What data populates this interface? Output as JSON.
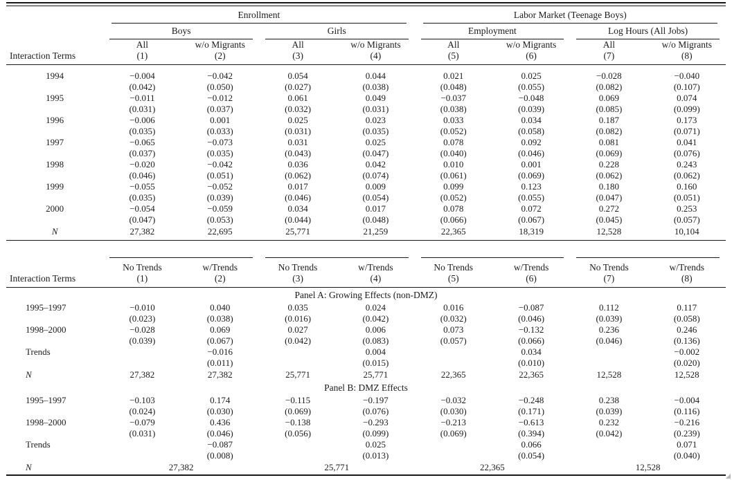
{
  "table1": {
    "stub_header": "Interaction Terms",
    "groups": [
      {
        "label": "Enrollment",
        "span": 4
      },
      {
        "label": "Labor Market (Teenage Boys)",
        "span": 4
      }
    ],
    "subgroups": [
      {
        "label": "Boys",
        "span": 2
      },
      {
        "label": "Girls",
        "span": 2
      },
      {
        "label": "Employment",
        "span": 2
      },
      {
        "label": "Log Hours (All Jobs)",
        "span": 2
      }
    ],
    "columns": [
      {
        "label": "All",
        "number": "(1)"
      },
      {
        "label": "w/o Migrants",
        "number": "(2)"
      },
      {
        "label": "All",
        "number": "(3)"
      },
      {
        "label": "w/o Migrants",
        "number": "(4)"
      },
      {
        "label": "All",
        "number": "(5)"
      },
      {
        "label": "w/o Migrants",
        "number": "(6)"
      },
      {
        "label": "All",
        "number": "(7)"
      },
      {
        "label": "w/o Migrants",
        "number": "(8)"
      }
    ],
    "rows": [
      {
        "label": "1994",
        "cells": [
          {
            "coef": "−0.004",
            "se": "(0.042)"
          },
          {
            "coef": "−0.042",
            "se": "(0.050)"
          },
          {
            "coef": "0.054",
            "se": "(0.027)"
          },
          {
            "coef": "0.044",
            "se": "(0.038)"
          },
          {
            "coef": "0.021",
            "se": "(0.048)"
          },
          {
            "coef": "0.025",
            "se": "(0.055)"
          },
          {
            "coef": "−0.028",
            "se": "(0.082)"
          },
          {
            "coef": "−0.040",
            "se": "(0.107)"
          }
        ]
      },
      {
        "label": "1995",
        "cells": [
          {
            "coef": "−0.011",
            "se": "(0.031)"
          },
          {
            "coef": "−0.012",
            "se": "(0.037)"
          },
          {
            "coef": "0.061",
            "se": "(0.032)"
          },
          {
            "coef": "0.049",
            "se": "(0.031)"
          },
          {
            "coef": "−0.037",
            "se": "(0.038)"
          },
          {
            "coef": "−0.048",
            "se": "(0.039)"
          },
          {
            "coef": "0.069",
            "se": "(0.085)"
          },
          {
            "coef": "0.074",
            "se": "(0.099)"
          }
        ]
      },
      {
        "label": "1996",
        "cells": [
          {
            "coef": "−0.006",
            "se": "(0.035)"
          },
          {
            "coef": "0.001",
            "se": "(0.033)"
          },
          {
            "coef": "0.025",
            "se": "(0.031)"
          },
          {
            "coef": "0.023",
            "se": "(0.035)"
          },
          {
            "coef": "0.033",
            "se": "(0.052)"
          },
          {
            "coef": "0.034",
            "se": "(0.058)"
          },
          {
            "coef": "0.187",
            "se": "(0.082)"
          },
          {
            "coef": "0.173",
            "se": "(0.071)"
          }
        ]
      },
      {
        "label": "1997",
        "cells": [
          {
            "coef": "−0.065",
            "se": "(0.037)"
          },
          {
            "coef": "−0.073",
            "se": "(0.035)"
          },
          {
            "coef": "0.031",
            "se": "(0.043)"
          },
          {
            "coef": "0.025",
            "se": "(0.047)"
          },
          {
            "coef": "0.078",
            "se": "(0.040)"
          },
          {
            "coef": "0.092",
            "se": "(0.046)"
          },
          {
            "coef": "0.081",
            "se": "(0.069)"
          },
          {
            "coef": "0.041",
            "se": "(0.076)"
          }
        ]
      },
      {
        "label": "1998",
        "cells": [
          {
            "coef": "−0.020",
            "se": "(0.046)"
          },
          {
            "coef": "−0.042",
            "se": "(0.051)"
          },
          {
            "coef": "0.036",
            "se": "(0.062)"
          },
          {
            "coef": "0.042",
            "se": "(0.074)"
          },
          {
            "coef": "0.010",
            "se": "(0.061)"
          },
          {
            "coef": "0.001",
            "se": "(0.069)"
          },
          {
            "coef": "0.228",
            "se": "(0.062)"
          },
          {
            "coef": "0.243",
            "se": "(0.062)"
          }
        ]
      },
      {
        "label": "1999",
        "cells": [
          {
            "coef": "−0.055",
            "se": "(0.035)"
          },
          {
            "coef": "−0.052",
            "se": "(0.039)"
          },
          {
            "coef": "0.017",
            "se": "(0.046)"
          },
          {
            "coef": "0.009",
            "se": "(0.054)"
          },
          {
            "coef": "0.099",
            "se": "(0.052)"
          },
          {
            "coef": "0.123",
            "se": "(0.055)"
          },
          {
            "coef": "0.180",
            "se": "(0.047)"
          },
          {
            "coef": "0.160",
            "se": "(0.051)"
          }
        ]
      },
      {
        "label": "2000",
        "cells": [
          {
            "coef": "−0.054",
            "se": "(0.047)"
          },
          {
            "coef": "−0.059",
            "se": "(0.053)"
          },
          {
            "coef": "0.034",
            "se": "(0.044)"
          },
          {
            "coef": "0.017",
            "se": "(0.048)"
          },
          {
            "coef": "0.078",
            "se": "(0.066)"
          },
          {
            "coef": "0.072",
            "se": "(0.067)"
          },
          {
            "coef": "0.272",
            "se": "(0.045)"
          },
          {
            "coef": "0.253",
            "se": "(0.057)"
          }
        ]
      }
    ],
    "n_row": {
      "label": "N",
      "values": [
        "27,382",
        "22,695",
        "25,771",
        "21,259",
        "22,365",
        "18,319",
        "12,528",
        "10,104"
      ]
    }
  },
  "table2": {
    "stub_header": "Interaction Terms",
    "columns": [
      {
        "label": "No Trends",
        "number": "(1)"
      },
      {
        "label": "w/Trends",
        "number": "(2)"
      },
      {
        "label": "No Trends",
        "number": "(3)"
      },
      {
        "label": "w/Trends",
        "number": "(4)"
      },
      {
        "label": "No Trends",
        "number": "(5)"
      },
      {
        "label": "w/Trends",
        "number": "(6)"
      },
      {
        "label": "No Trends",
        "number": "(7)"
      },
      {
        "label": "w/Trends",
        "number": "(8)"
      }
    ],
    "panels": [
      {
        "title": "Panel A: Growing Effects (non-DMZ)",
        "rows": [
          {
            "label": "1995–1997",
            "cells": [
              {
                "coef": "−0.010",
                "se": "(0.023)"
              },
              {
                "coef": "0.040",
                "se": "(0.038)"
              },
              {
                "coef": "0.035",
                "se": "(0.016)"
              },
              {
                "coef": "0.024",
                "se": "(0.042)"
              },
              {
                "coef": "0.016",
                "se": "(0.032)"
              },
              {
                "coef": "−0.087",
                "se": "(0.046)"
              },
              {
                "coef": "0.112",
                "se": "(0.039)"
              },
              {
                "coef": "0.117",
                "se": "(0.058)"
              }
            ]
          },
          {
            "label": "1998–2000",
            "cells": [
              {
                "coef": "−0.028",
                "se": "(0.039)"
              },
              {
                "coef": "0.069",
                "se": "(0.067)"
              },
              {
                "coef": "0.027",
                "se": "(0.042)"
              },
              {
                "coef": "0.006",
                "se": "(0.083)"
              },
              {
                "coef": "0.073",
                "se": "(0.057)"
              },
              {
                "coef": "−0.132",
                "se": "(0.066)"
              },
              {
                "coef": "0.236",
                "se": "(0.046)"
              },
              {
                "coef": "0.246",
                "se": "(0.136)"
              }
            ]
          },
          {
            "label": "Trends",
            "cells": [
              null,
              {
                "coef": "−0.016",
                "se": "(0.011)"
              },
              null,
              {
                "coef": "0.004",
                "se": "(0.015)"
              },
              null,
              {
                "coef": "0.034",
                "se": "(0.010)"
              },
              null,
              {
                "coef": "−0.002",
                "se": "(0.020)"
              }
            ]
          }
        ],
        "n_row": {
          "label": "N",
          "span": 1,
          "values": [
            "27,382",
            "27,382",
            "25,771",
            "25,771",
            "22,365",
            "22,365",
            "12,528",
            "12,528"
          ]
        }
      },
      {
        "title": "Panel B: DMZ Effects",
        "rows": [
          {
            "label": "1995–1997",
            "cells": [
              {
                "coef": "−0.103",
                "se": "(0.024)"
              },
              {
                "coef": "0.174",
                "se": "(0.030)"
              },
              {
                "coef": "−0.115",
                "se": "(0.069)"
              },
              {
                "coef": "−0.197",
                "se": "(0.076)"
              },
              {
                "coef": "−0.032",
                "se": "(0.030)"
              },
              {
                "coef": "−0.248",
                "se": "(0.171)"
              },
              {
                "coef": "0.238",
                "se": "(0.039)"
              },
              {
                "coef": "−0.004",
                "se": "(0.116)"
              }
            ]
          },
          {
            "label": "1998–2000",
            "cells": [
              {
                "coef": "−0.079",
                "se": "(0.031)"
              },
              {
                "coef": "0.436",
                "se": "(0.046)"
              },
              {
                "coef": "−0.138",
                "se": "(0.056)"
              },
              {
                "coef": "−0.293",
                "se": "(0.099)"
              },
              {
                "coef": "−0.213",
                "se": "(0.069)"
              },
              {
                "coef": "−0.613",
                "se": "(0.394)"
              },
              {
                "coef": "0.232",
                "se": "(0.042)"
              },
              {
                "coef": "−0.216",
                "se": "(0.239)"
              }
            ]
          },
          {
            "label": "Trends",
            "cells": [
              null,
              {
                "coef": "−0.087",
                "se": "(0.008)"
              },
              null,
              {
                "coef": "0.025",
                "se": "(0.013)"
              },
              null,
              {
                "coef": "0.066",
                "se": "(0.054)"
              },
              null,
              {
                "coef": "0.071",
                "se": "(0.040)"
              }
            ]
          }
        ],
        "n_row": {
          "label": "N",
          "span": 2,
          "values": [
            "27,382",
            "25,771",
            "22,365",
            "12,528"
          ]
        }
      }
    ]
  }
}
